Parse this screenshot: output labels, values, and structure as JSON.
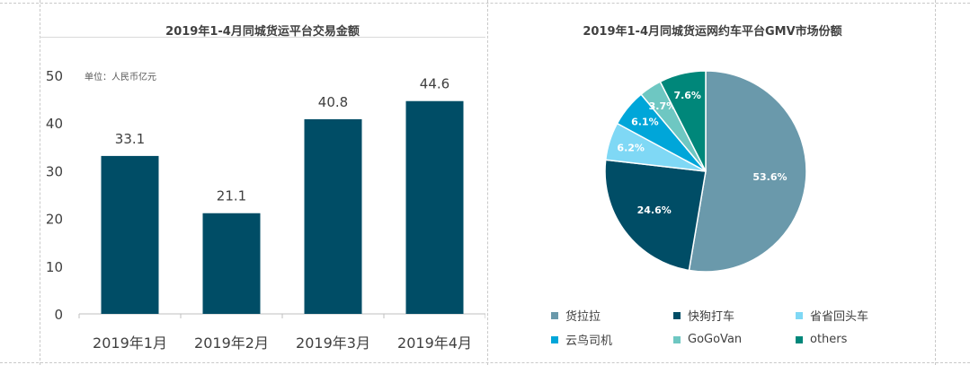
{
  "chart_data": [
    {
      "type": "bar",
      "title": "2019年1-4月同城货运平台交易金额",
      "unit_note": "单位：人民币亿元",
      "xlabel": "",
      "ylabel": "",
      "categories": [
        "2019年1月",
        "2019年2月",
        "2019年3月",
        "2019年4月"
      ],
      "values": [
        33.1,
        21.1,
        40.8,
        44.6
      ],
      "data_labels": [
        "33.1",
        "21.1",
        "40.8",
        "44.6"
      ],
      "ylim": [
        0,
        50
      ],
      "yticks": [
        "0",
        "10",
        "20",
        "30",
        "40",
        "50"
      ],
      "grid": false,
      "color": "#004D66"
    },
    {
      "type": "pie",
      "title": "2019年1-4月同城货运网约车平台GMV市场份额",
      "labels": [
        "货拉拉",
        "快狗打车",
        "省省回头车",
        "云鸟司机",
        "GoGoVan",
        "others"
      ],
      "values": [
        53.6,
        24.6,
        6.2,
        6.1,
        3.7,
        7.6
      ],
      "data_labels": [
        "53.6%",
        "24.6%",
        "6.2%",
        "6.1%",
        "3.7%",
        "7.6%"
      ],
      "colors": [
        "#6A99AB",
        "#004D66",
        "#7FD8F5",
        "#00A6D9",
        "#6EC7C2",
        "#00877A"
      ],
      "legend_position": "bottom"
    }
  ]
}
